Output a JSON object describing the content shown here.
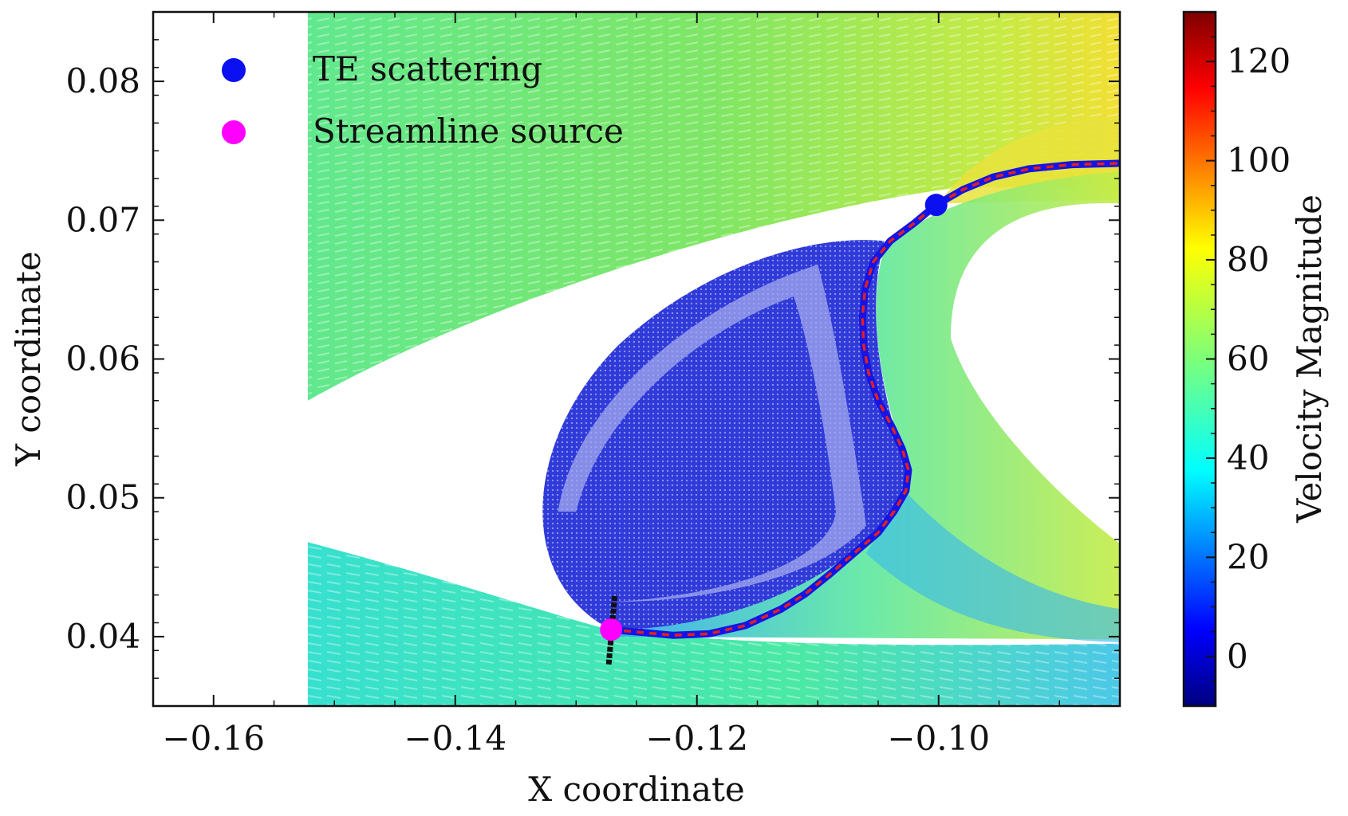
{
  "chart_data": {
    "type": "quiver-streamline",
    "xlabel": "X coordinate",
    "ylabel": "Y coordinate",
    "xlim": [
      -0.165,
      -0.085
    ],
    "ylim": [
      0.035,
      0.085
    ],
    "x_ticks": [
      -0.16,
      -0.14,
      -0.12,
      -0.1
    ],
    "x_tick_labels": [
      "−0.16",
      "−0.14",
      "−0.12",
      "−0.10"
    ],
    "y_ticks": [
      0.04,
      0.05,
      0.06,
      0.07,
      0.08
    ],
    "y_tick_labels": [
      "0.04",
      "0.05",
      "0.06",
      "0.07",
      "0.08"
    ],
    "colorbar": {
      "label": "Velocity Magnitude",
      "min": -10,
      "max": 130,
      "ticks": [
        0,
        20,
        40,
        60,
        80,
        100,
        120
      ],
      "tick_labels": [
        "0",
        "20",
        "40",
        "60",
        "80",
        "100",
        "120"
      ],
      "colormap": "jet"
    },
    "legend": {
      "placement": "top-left",
      "entries": [
        {
          "label": "TE scattering",
          "color": "#0a10f0"
        },
        {
          "label": "Streamline source",
          "color": "#ff00ff"
        }
      ]
    },
    "points": {
      "te_scattering": {
        "x": -0.1002,
        "y": 0.0711,
        "color": "#0a10f0"
      },
      "streamline_source": {
        "x": -0.1271,
        "y": 0.0405,
        "color": "#ff00ff"
      }
    },
    "streamline": {
      "color_outer": "#1414e6",
      "color_inner": "#e02020",
      "points": [
        [
          -0.1271,
          0.0405
        ],
        [
          -0.1245,
          0.0403
        ],
        [
          -0.122,
          0.0401
        ],
        [
          -0.119,
          0.0402
        ],
        [
          -0.116,
          0.0408
        ],
        [
          -0.113,
          0.042
        ],
        [
          -0.111,
          0.0431
        ],
        [
          -0.109,
          0.0445
        ],
        [
          -0.107,
          0.046
        ],
        [
          -0.105,
          0.0475
        ],
        [
          -0.1037,
          0.049
        ],
        [
          -0.1027,
          0.0505
        ],
        [
          -0.1025,
          0.052
        ],
        [
          -0.103,
          0.0535
        ],
        [
          -0.1038,
          0.055
        ],
        [
          -0.105,
          0.057
        ],
        [
          -0.1058,
          0.059
        ],
        [
          -0.1062,
          0.061
        ],
        [
          -0.1063,
          0.063
        ],
        [
          -0.1061,
          0.065
        ],
        [
          -0.1054,
          0.067
        ],
        [
          -0.104,
          0.0685
        ],
        [
          -0.102,
          0.0698
        ],
        [
          -0.1002,
          0.0711
        ],
        [
          -0.098,
          0.0722
        ],
        [
          -0.0955,
          0.0731
        ],
        [
          -0.0925,
          0.0737
        ],
        [
          -0.089,
          0.074
        ],
        [
          -0.085,
          0.0741
        ]
      ]
    },
    "source_line": {
      "color": "#111111",
      "start": [
        -0.1273,
        0.038
      ],
      "end": [
        -0.1268,
        0.043
      ]
    },
    "regions": {
      "upper_jet_color": "#78e36a",
      "lower_jet_color": "#40e8b4",
      "recirculation_color": "#2530d8",
      "recirculation_light": "#a3a9ec",
      "wake_color": "#35b8f0",
      "hot_color": "#e7e33c"
    }
  }
}
